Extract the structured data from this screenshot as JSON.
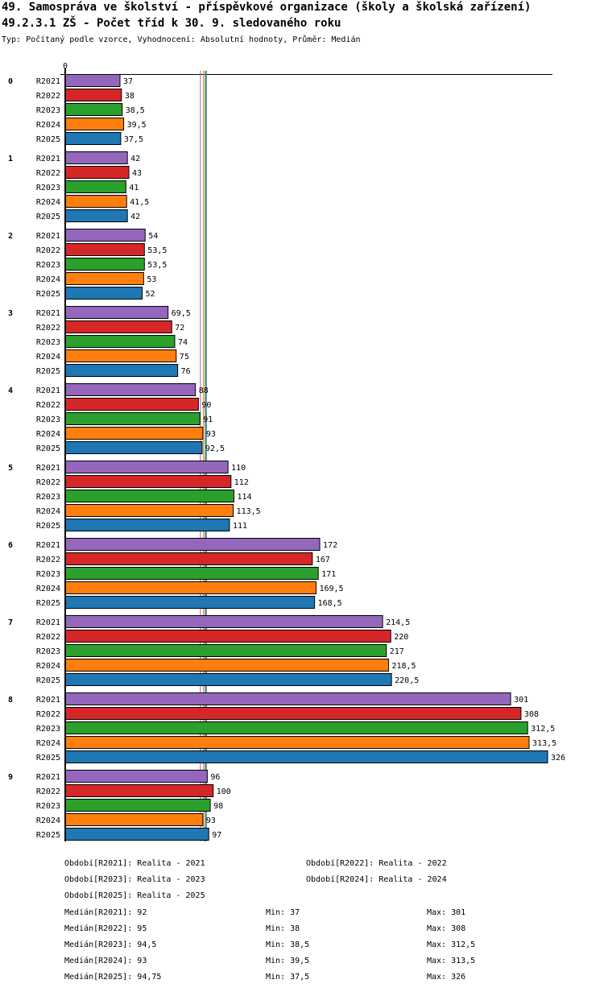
{
  "title": "49. Samospráva ve školství - příspěvkové organizace (školy a školská zařízení)",
  "subtitle": "49.2.3.1 ZŠ - Počet tříd k 30. 9. sledovaného roku",
  "info": "Typ: Počítaný podle vzorce, Vyhodnocení: Absolutní hodnoty, Průměr: Medián",
  "chart_data": {
    "type": "bar",
    "orientation": "horizontal",
    "axis_label_zero": "0",
    "xlim": [
      0,
      326
    ],
    "categories": [
      "0",
      "1",
      "2",
      "3",
      "4",
      "5",
      "6",
      "7",
      "8",
      "9"
    ],
    "series": [
      {
        "name": "R2021",
        "color": "#9467bd",
        "values": [
          37,
          42,
          54,
          69.5,
          88,
          110,
          172,
          214.5,
          301,
          96
        ],
        "labels": [
          "37",
          "42",
          "54",
          "69,5",
          "88",
          "110",
          "172",
          "214,5",
          "301",
          "96"
        ],
        "median": 92
      },
      {
        "name": "R2022",
        "color": "#d62728",
        "values": [
          38,
          43,
          53.5,
          72,
          90,
          112,
          167,
          220,
          308,
          100
        ],
        "labels": [
          "38",
          "43",
          "53,5",
          "72",
          "90",
          "112",
          "167",
          "220",
          "308",
          "100"
        ],
        "median": 95
      },
      {
        "name": "R2023",
        "color": "#2ca02c",
        "values": [
          38.5,
          41,
          53.5,
          74,
          91,
          114,
          171,
          217,
          312.5,
          98
        ],
        "labels": [
          "38,5",
          "41",
          "53,5",
          "74",
          "91",
          "114",
          "171",
          "217",
          "312,5",
          "98"
        ],
        "median": 94.5
      },
      {
        "name": "R2024",
        "color": "#ff7f0e",
        "values": [
          39.5,
          41.5,
          53,
          75,
          93,
          113.5,
          169.5,
          218.5,
          313.5,
          93
        ],
        "labels": [
          "39,5",
          "41,5",
          "53",
          "75",
          "93",
          "113,5",
          "169,5",
          "218,5",
          "313,5",
          "93"
        ],
        "median": 93
      },
      {
        "name": "R2025",
        "color": "#1f77b4",
        "values": [
          37.5,
          42,
          52,
          76,
          92.5,
          111,
          168.5,
          220.5,
          326,
          97
        ],
        "labels": [
          "37,5",
          "42",
          "52",
          "76",
          "92,5",
          "111",
          "168,5",
          "220,5",
          "326",
          "97"
        ],
        "median": 94.75
      }
    ]
  },
  "legend": {
    "periods": [
      "Období[R2021]: Realita - 2021",
      "Období[R2022]: Realita - 2022",
      "Období[R2023]: Realita - 2023",
      "Období[R2024]: Realita - 2024",
      "Období[R2025]: Realita - 2025"
    ],
    "stats": [
      [
        "Medián[R2021]: 92",
        "Min: 37",
        "Max: 301"
      ],
      [
        "Medián[R2022]: 95",
        "Min: 38",
        "Max: 308"
      ],
      [
        "Medián[R2023]: 94,5",
        "Min: 38,5",
        "Max: 312,5"
      ],
      [
        "Medián[R2024]: 93",
        "Min: 39,5",
        "Max: 313,5"
      ],
      [
        "Medián[R2025]: 94,75",
        "Min: 37,5",
        "Max: 326"
      ]
    ]
  }
}
